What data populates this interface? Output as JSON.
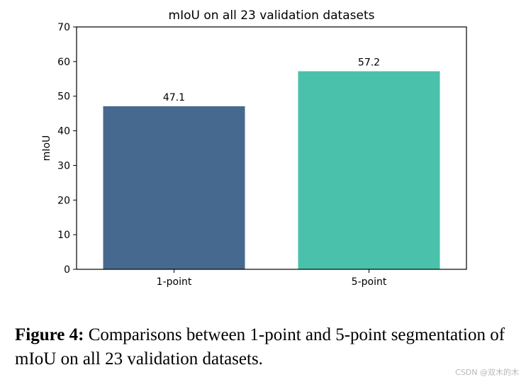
{
  "chart_data": {
    "type": "bar",
    "title": "mIoU on all 23 validation datasets",
    "xlabel": "",
    "ylabel": "mIoU",
    "categories": [
      "1-point",
      "5-point"
    ],
    "values": [
      47.1,
      57.2
    ],
    "value_labels": [
      "47.1",
      "57.2"
    ],
    "colors": [
      "#46698f",
      "#4ac1aa"
    ],
    "ylim": [
      0,
      70
    ],
    "yticks": [
      0,
      10,
      20,
      30,
      40,
      50,
      60,
      70
    ],
    "grid": false,
    "legend": "none"
  },
  "caption": {
    "label": "Figure 4:",
    "text": "Comparisons between 1-point and 5-point segmentation of mIoU on all 23 validation datasets."
  },
  "watermark": "CSDN @双木的木"
}
